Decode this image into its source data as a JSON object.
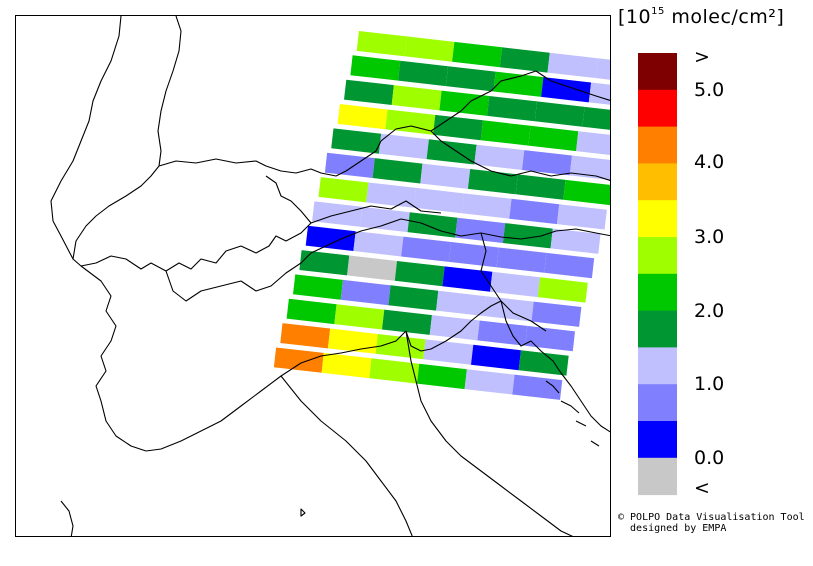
{
  "legend": {
    "title_main": "[10",
    "title_exp": "15",
    "title_unit": " molec/cm²]",
    "colors": [
      "#7f0000",
      "#ff0000",
      "#ff7f00",
      "#ffbf00",
      "#ffff00",
      "#9fff00",
      "#00c800",
      "#009632",
      "#c0c0ff",
      "#8080ff",
      "#0000ff",
      "#c8c8c8"
    ],
    "labels": [
      ">",
      "5.0",
      "4.0",
      "3.0",
      "2.0",
      "1.0",
      "0.0",
      "<"
    ]
  },
  "credit": {
    "line1": "© POLPO Data Visualisation Tool",
    "line2": "  designed by EMPA"
  },
  "swaths": [
    [
      "#9fff00",
      "#9fff00",
      "#00c800",
      "#009632",
      "#c0c0ff",
      "#c0c0ff"
    ],
    [
      "#00c800",
      "#009632",
      "#009632",
      "#00c800",
      "#0000ff",
      "#c0c0ff"
    ],
    [
      "#009632",
      "#9fff00",
      "#00c800",
      "#009632",
      "#009632",
      "#009632"
    ],
    [
      "#ffff00",
      "#9fff00",
      "#009632",
      "#00c800",
      "#00c800",
      "#c0c0ff"
    ],
    [
      "#009632",
      "#c0c0ff",
      "#009632",
      "#c0c0ff",
      "#8080ff",
      "#c0c0ff"
    ],
    [
      "#8080ff",
      "#009632",
      "#c0c0ff",
      "#009632",
      "#009632",
      "#00c800"
    ],
    [
      "#9fff00",
      "#c0c0ff",
      "#c0c0ff",
      "#c0c0ff",
      "#8080ff",
      "#c0c0ff"
    ],
    [
      "#c0c0ff",
      "#c0c0ff",
      "#009632",
      "#8080ff",
      "#009632",
      "#c0c0ff"
    ],
    [
      "#0000ff",
      "#c0c0ff",
      "#8080ff",
      "#8080ff",
      "#8080ff",
      "#8080ff"
    ],
    [
      "#009632",
      "#c8c8c8",
      "#009632",
      "#0000ff",
      "#c0c0ff",
      "#9fff00"
    ],
    [
      "#00c800",
      "#8080ff",
      "#009632",
      "#c0c0ff",
      "#c0c0ff",
      "#8080ff"
    ],
    [
      "#00c800",
      "#9fff00",
      "#009632",
      "#c0c0ff",
      "#8080ff",
      "#8080ff"
    ],
    [
      "#ff7f00",
      "#ffff00",
      "#9fff00",
      "#c0c0ff",
      "#0000ff",
      "#009632"
    ],
    [
      "#ff7f00",
      "#ffff00",
      "#9fff00",
      "#00c800",
      "#c0c0ff",
      "#8080ff"
    ]
  ]
}
